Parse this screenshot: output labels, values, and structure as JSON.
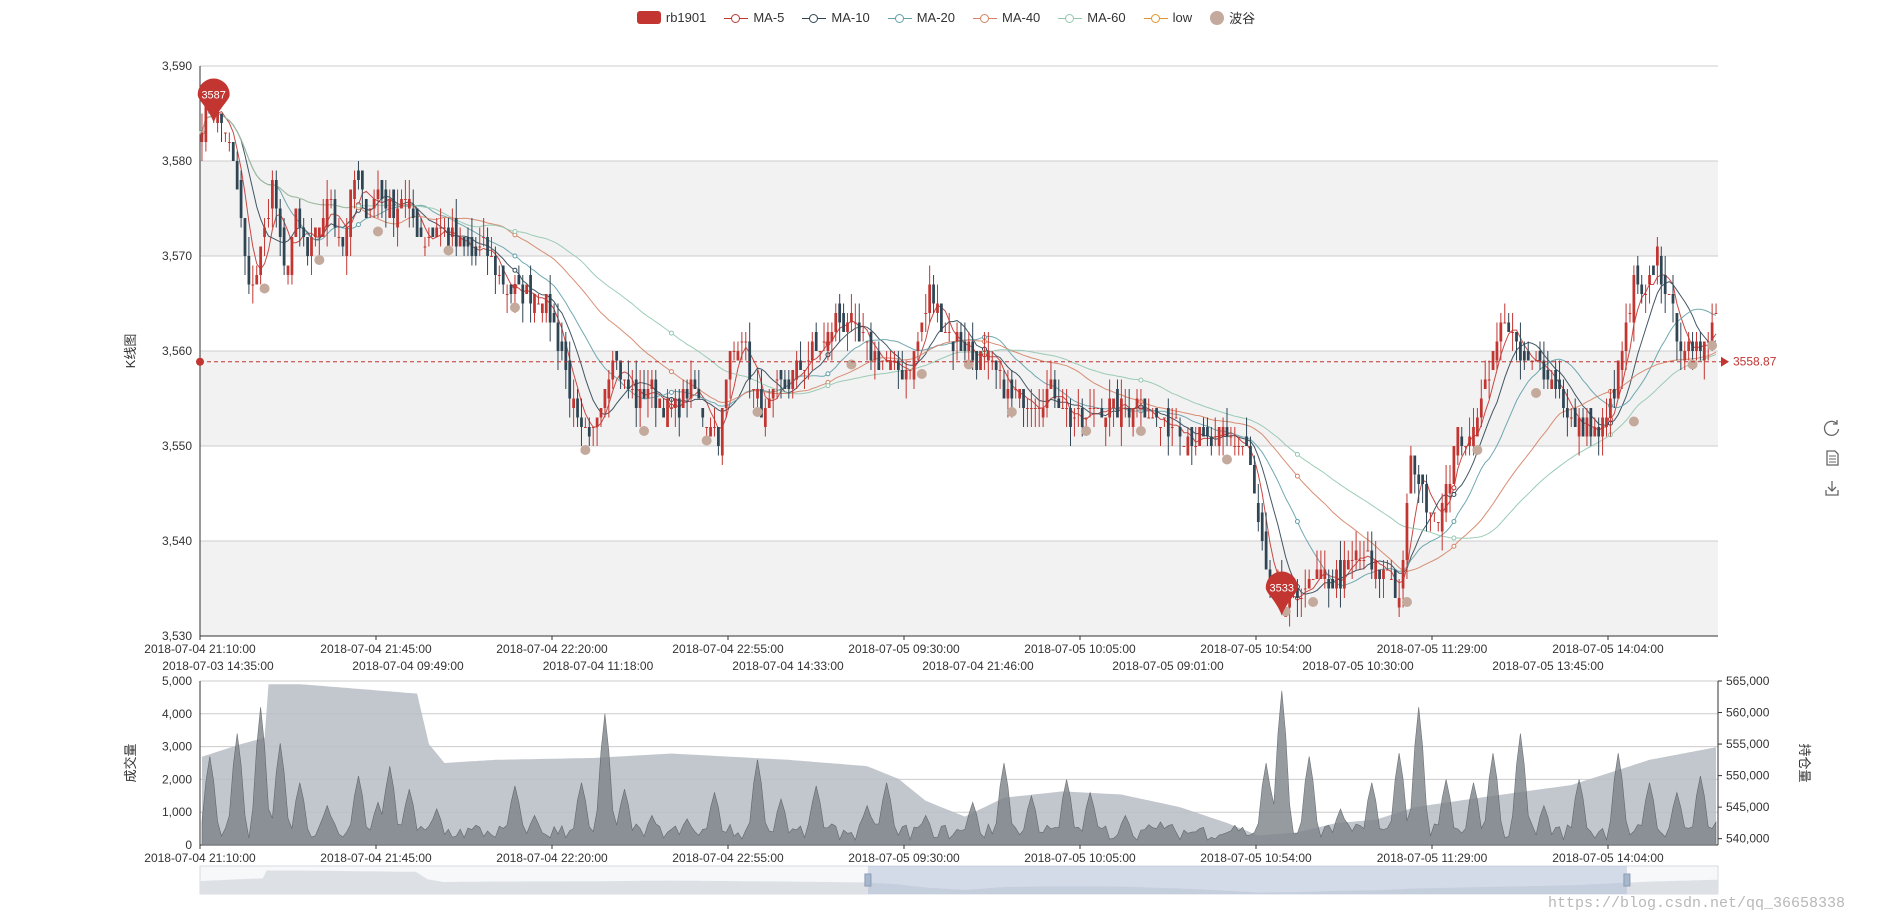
{
  "legend": {
    "items": [
      {
        "label": "rb1901",
        "kind": "rect",
        "color": "#c23531"
      },
      {
        "label": "MA-5",
        "kind": "line",
        "color": "#c23531"
      },
      {
        "label": "MA-10",
        "kind": "line",
        "color": "#2f4554"
      },
      {
        "label": "MA-20",
        "kind": "line",
        "color": "#61a0a8"
      },
      {
        "label": "MA-40",
        "kind": "line",
        "color": "#d48265"
      },
      {
        "label": "MA-60",
        "kind": "line",
        "color": "#91c7ae"
      },
      {
        "label": "low",
        "kind": "line",
        "color": "#e0952a"
      },
      {
        "label": "波谷",
        "kind": "dot",
        "color": "#c4aa9c"
      }
    ]
  },
  "watermark": "https://blog.csdn.net/qq_36658338",
  "chart_data": [
    {
      "type": "candlestick",
      "name": "main-kline",
      "ylabel": "K线图",
      "ylim": [
        3530,
        3590
      ],
      "yticks": [
        3530,
        3540,
        3550,
        3560,
        3570,
        3580,
        3590
      ],
      "ytick_labels": [
        "3,530",
        "3,540",
        "3,550",
        "3,560",
        "3,570",
        "3,580",
        "3,590"
      ],
      "xtick_labels": [
        "2018-07-04 21:10:00",
        "2018-07-04 21:45:00",
        "2018-07-04 22:20:00",
        "2018-07-04 22:55:00",
        "2018-07-05 09:30:00",
        "2018-07-05 10:05:00",
        "2018-07-05 10:54:00",
        "2018-07-05 11:29:00",
        "2018-07-05 14:04:00"
      ],
      "xtick_labels_secondary": [
        "2018-07-03 14:35:00",
        "2018-07-04 09:49:00",
        "2018-07-04 11:18:00",
        "2018-07-04 14:33:00",
        "2018-07-04 21:46:00",
        "2018-07-05 09:01:00",
        "2018-07-05 10:30:00",
        "2018-07-05 13:45:00"
      ],
      "close_anchors": [
        [
          0,
          3584
        ],
        [
          3,
          3586
        ],
        [
          6,
          3583
        ],
        [
          9,
          3577
        ],
        [
          12,
          3566
        ],
        [
          15,
          3570
        ],
        [
          18,
          3578
        ],
        [
          21,
          3568
        ],
        [
          24,
          3574
        ],
        [
          27,
          3570
        ],
        [
          30,
          3573
        ],
        [
          33,
          3576
        ],
        [
          36,
          3571
        ],
        [
          39,
          3578
        ],
        [
          42,
          3575
        ],
        [
          45,
          3577
        ],
        [
          48,
          3575
        ],
        [
          51,
          3576
        ],
        [
          54,
          3574
        ],
        [
          57,
          3572
        ],
        [
          60,
          3573
        ],
        [
          63,
          3572
        ],
        [
          66,
          3571
        ],
        [
          69,
          3570
        ],
        [
          72,
          3571
        ],
        [
          75,
          3569
        ],
        [
          78,
          3566
        ],
        [
          81,
          3566
        ],
        [
          84,
          3566
        ],
        [
          87,
          3566
        ],
        [
          90,
          3563
        ],
        [
          93,
          3558
        ],
        [
          96,
          3552
        ],
        [
          99,
          3550
        ],
        [
          102,
          3555
        ],
        [
          105,
          3560
        ],
        [
          108,
          3556
        ],
        [
          111,
          3555
        ],
        [
          114,
          3556
        ],
        [
          117,
          3555
        ],
        [
          120,
          3554
        ],
        [
          123,
          3555
        ],
        [
          126,
          3556
        ],
        [
          129,
          3553
        ],
        [
          132,
          3551
        ],
        [
          135,
          3559
        ],
        [
          138,
          3562
        ],
        [
          141,
          3556
        ],
        [
          144,
          3553
        ],
        [
          147,
          3556
        ],
        [
          150,
          3557
        ],
        [
          153,
          3558
        ],
        [
          156,
          3560
        ],
        [
          159,
          3561
        ],
        [
          162,
          3563
        ],
        [
          165,
          3563
        ],
        [
          168,
          3561
        ],
        [
          171,
          3560
        ],
        [
          174,
          3559
        ],
        [
          177,
          3558
        ],
        [
          180,
          3558
        ],
        [
          183,
          3561
        ],
        [
          186,
          3566
        ],
        [
          189,
          3563
        ],
        [
          192,
          3561
        ],
        [
          195,
          3561
        ],
        [
          198,
          3559
        ],
        [
          201,
          3559
        ],
        [
          204,
          3557
        ],
        [
          207,
          3555
        ],
        [
          210,
          3555
        ],
        [
          213,
          3555
        ],
        [
          216,
          3556
        ],
        [
          219,
          3555
        ],
        [
          222,
          3553
        ],
        [
          225,
          3552
        ],
        [
          228,
          3554
        ],
        [
          231,
          3554
        ],
        [
          234,
          3554
        ],
        [
          237,
          3554
        ],
        [
          240,
          3555
        ],
        [
          243,
          3553
        ],
        [
          246,
          3552
        ],
        [
          249,
          3553
        ],
        [
          252,
          3551
        ],
        [
          255,
          3551
        ],
        [
          258,
          3550
        ],
        [
          261,
          3551
        ],
        [
          264,
          3550
        ],
        [
          267,
          3550
        ],
        [
          270,
          3542
        ],
        [
          273,
          3534
        ],
        [
          276,
          3533
        ],
        [
          279,
          3534
        ],
        [
          282,
          3535
        ],
        [
          285,
          3536
        ],
        [
          288,
          3536
        ],
        [
          291,
          3536
        ],
        [
          294,
          3538
        ],
        [
          297,
          3538
        ],
        [
          300,
          3537
        ],
        [
          303,
          3537
        ],
        [
          306,
          3534
        ],
        [
          309,
          3548
        ],
        [
          312,
          3545
        ],
        [
          315,
          3542
        ],
        [
          318,
          3546
        ],
        [
          321,
          3551
        ],
        [
          324,
          3550
        ],
        [
          327,
          3556
        ],
        [
          330,
          3559
        ],
        [
          333,
          3564
        ],
        [
          336,
          3560
        ],
        [
          339,
          3558
        ],
        [
          342,
          3559
        ],
        [
          345,
          3557
        ],
        [
          348,
          3555
        ],
        [
          351,
          3552
        ],
        [
          354,
          3552
        ],
        [
          357,
          3551
        ],
        [
          360,
          3554
        ],
        [
          363,
          3560
        ],
        [
          366,
          3567
        ],
        [
          369,
          3565
        ],
        [
          372,
          3570
        ],
        [
          375,
          3565
        ],
        [
          378,
          3561
        ],
        [
          381,
          3559
        ],
        [
          384,
          3562
        ],
        [
          387,
          3564
        ]
      ],
      "bars": 388,
      "rising_color": "#c23531",
      "falling_color": "#2f4554",
      "ma_periods": [
        5,
        10,
        20,
        40,
        60
      ],
      "low_series_visible": true,
      "markpoints": [
        {
          "label": "3587",
          "kind": "max",
          "bar_index": 3,
          "value": 3587
        },
        {
          "label": "3533",
          "kind": "min",
          "bar_index": 276,
          "value": 3533
        }
      ],
      "markline": {
        "value": 3558.87,
        "label": "3558.87",
        "color": "#c23531"
      },
      "valleys": [
        {
          "bar_index": 16,
          "value": 3567
        },
        {
          "bar_index": 30,
          "value": 3570
        },
        {
          "bar_index": 45,
          "value": 3573
        },
        {
          "bar_index": 63,
          "value": 3571
        },
        {
          "bar_index": 80,
          "value": 3565
        },
        {
          "bar_index": 98,
          "value": 3550
        },
        {
          "bar_index": 113,
          "value": 3552
        },
        {
          "bar_index": 129,
          "value": 3551
        },
        {
          "bar_index": 142,
          "value": 3554
        },
        {
          "bar_index": 166,
          "value": 3559
        },
        {
          "bar_index": 184,
          "value": 3558
        },
        {
          "bar_index": 196,
          "value": 3559
        },
        {
          "bar_index": 207,
          "value": 3554
        },
        {
          "bar_index": 226,
          "value": 3552
        },
        {
          "bar_index": 240,
          "value": 3552
        },
        {
          "bar_index": 262,
          "value": 3549
        },
        {
          "bar_index": 277,
          "value": 3533
        },
        {
          "bar_index": 284,
          "value": 3534
        },
        {
          "bar_index": 308,
          "value": 3534
        },
        {
          "bar_index": 326,
          "value": 3550
        },
        {
          "bar_index": 341,
          "value": 3556
        },
        {
          "bar_index": 366,
          "value": 3553
        },
        {
          "bar_index": 381,
          "value": 3559
        },
        {
          "bar_index": 386,
          "value": 3561
        }
      ]
    },
    {
      "type": "area",
      "name": "volume-open-interest",
      "ylabel_left": "成交量",
      "ylabel_right": "持仓量",
      "ylim_left": [
        0,
        5000
      ],
      "ylim_right": [
        539000,
        565000
      ],
      "yticks_left": [
        0,
        1000,
        2000,
        3000,
        4000,
        5000
      ],
      "ytick_labels_left": [
        "0",
        "1,000",
        "2,000",
        "3,000",
        "4,000",
        "5,000"
      ],
      "yticks_right": [
        540000,
        545000,
        550000,
        555000,
        560000,
        565000
      ],
      "ytick_labels_right": [
        "540,000",
        "545,000",
        "550,000",
        "555,000",
        "560,000",
        "565,000"
      ],
      "xtick_labels": [
        "2018-07-04 21:10:00",
        "2018-07-04 21:45:00",
        "2018-07-04 22:20:00",
        "2018-07-04 22:55:00",
        "2018-07-05 09:30:00",
        "2018-07-05 10:05:00",
        "2018-07-05 10:54:00",
        "2018-07-05 11:29:00",
        "2018-07-05 14:04:00"
      ],
      "open_interest_anchors": [
        [
          0,
          553000
        ],
        [
          10,
          555000
        ],
        [
          16,
          556000
        ],
        [
          17,
          564500
        ],
        [
          25,
          564500
        ],
        [
          35,
          564000
        ],
        [
          55,
          563000
        ],
        [
          58,
          555000
        ],
        [
          62,
          552000
        ],
        [
          75,
          552500
        ],
        [
          100,
          552800
        ],
        [
          120,
          553500
        ],
        [
          150,
          552500
        ],
        [
          170,
          551500
        ],
        [
          178,
          549500
        ],
        [
          185,
          546000
        ],
        [
          195,
          543500
        ],
        [
          205,
          546500
        ],
        [
          220,
          547500
        ],
        [
          235,
          547000
        ],
        [
          250,
          545000
        ],
        [
          262,
          542500
        ],
        [
          270,
          540500
        ],
        [
          280,
          541000
        ],
        [
          290,
          542500
        ],
        [
          300,
          543000
        ],
        [
          310,
          545000
        ],
        [
          330,
          546800
        ],
        [
          350,
          548500
        ],
        [
          370,
          552500
        ],
        [
          387,
          554500
        ]
      ],
      "volume_spikes": [
        [
          2,
          2700
        ],
        [
          9,
          3400
        ],
        [
          15,
          4200
        ],
        [
          20,
          3100
        ],
        [
          25,
          1900
        ],
        [
          32,
          1200
        ],
        [
          40,
          2100
        ],
        [
          45,
          1300
        ],
        [
          48,
          2400
        ],
        [
          53,
          1700
        ],
        [
          60,
          1100
        ],
        [
          70,
          600
        ],
        [
          80,
          1800
        ],
        [
          85,
          900
        ],
        [
          97,
          1900
        ],
        [
          103,
          4000
        ],
        [
          108,
          1700
        ],
        [
          115,
          900
        ],
        [
          124,
          800
        ],
        [
          131,
          1600
        ],
        [
          142,
          2600
        ],
        [
          148,
          1400
        ],
        [
          157,
          1800
        ],
        [
          170,
          1200
        ],
        [
          175,
          1900
        ],
        [
          185,
          900
        ],
        [
          197,
          1300
        ],
        [
          205,
          2500
        ],
        [
          212,
          1500
        ],
        [
          221,
          2000
        ],
        [
          227,
          1600
        ],
        [
          236,
          900
        ],
        [
          245,
          700
        ],
        [
          255,
          500
        ],
        [
          264,
          600
        ],
        [
          272,
          2500
        ],
        [
          276,
          4700
        ],
        [
          283,
          2700
        ],
        [
          291,
          1100
        ],
        [
          299,
          1900
        ],
        [
          306,
          2800
        ],
        [
          311,
          4200
        ],
        [
          318,
          2000
        ],
        [
          325,
          1900
        ],
        [
          330,
          2800
        ],
        [
          337,
          3400
        ],
        [
          343,
          1200
        ],
        [
          352,
          2000
        ],
        [
          362,
          2800
        ],
        [
          370,
          1900
        ],
        [
          377,
          1600
        ],
        [
          383,
          2100
        ],
        [
          387,
          700
        ]
      ]
    }
  ],
  "datazoom": {
    "start_percent": 44,
    "end_percent": 94
  }
}
